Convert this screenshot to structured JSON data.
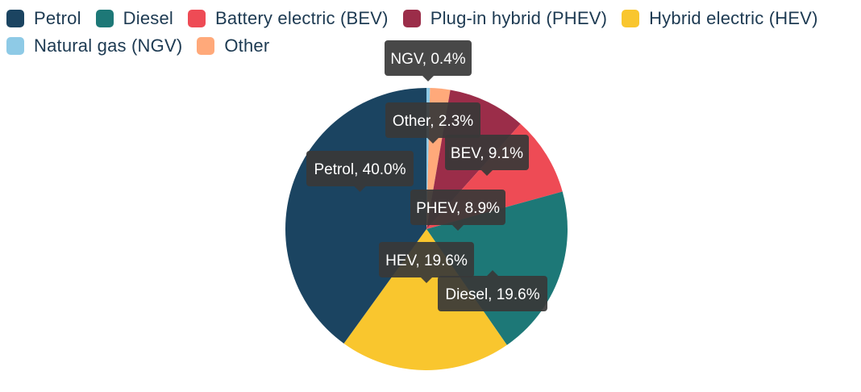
{
  "chart_data": {
    "type": "pie",
    "title": "",
    "legend_position": "top-left",
    "series": [
      {
        "name": "Natural gas (NGV)",
        "value": 0.4,
        "color": "#8ecae6",
        "data_label": "NGV, 0.4%"
      },
      {
        "name": "Other",
        "value": 2.3,
        "color": "#ffa97a",
        "data_label": "Other, 2.3%"
      },
      {
        "name": "Plug-in hybrid (PHEV)",
        "value": 8.9,
        "color": "#9b2d49",
        "data_label": "PHEV, 8.9%"
      },
      {
        "name": "Battery electric (BEV)",
        "value": 9.1,
        "color": "#ee4b55",
        "data_label": "BEV, 9.1%"
      },
      {
        "name": "Diesel",
        "value": 19.6,
        "color": "#1d7877",
        "data_label": "Diesel, 19.6%"
      },
      {
        "name": "Hybrid electric (HEV)",
        "value": 19.6,
        "color": "#f9c62e",
        "data_label": "HEV, 19.6%"
      },
      {
        "name": "Petrol",
        "value": 40.0,
        "color": "#1b4461",
        "data_label": "Petrol, 40.0%"
      }
    ]
  },
  "legend": {
    "row1": [
      {
        "label": "Petrol",
        "color": "#1b4461"
      },
      {
        "label": "Diesel",
        "color": "#1d7877"
      },
      {
        "label": "Battery electric (BEV)",
        "color": "#ee4b55"
      },
      {
        "label": "Plug-in hybrid (PHEV)",
        "color": "#9b2d49"
      },
      {
        "label": "Hybrid electric (HEV)",
        "color": "#f9c62e"
      }
    ],
    "row2": [
      {
        "label": "Natural gas (NGV)",
        "color": "#8ecae6"
      },
      {
        "label": "Other",
        "color": "#ffa97a"
      }
    ]
  }
}
